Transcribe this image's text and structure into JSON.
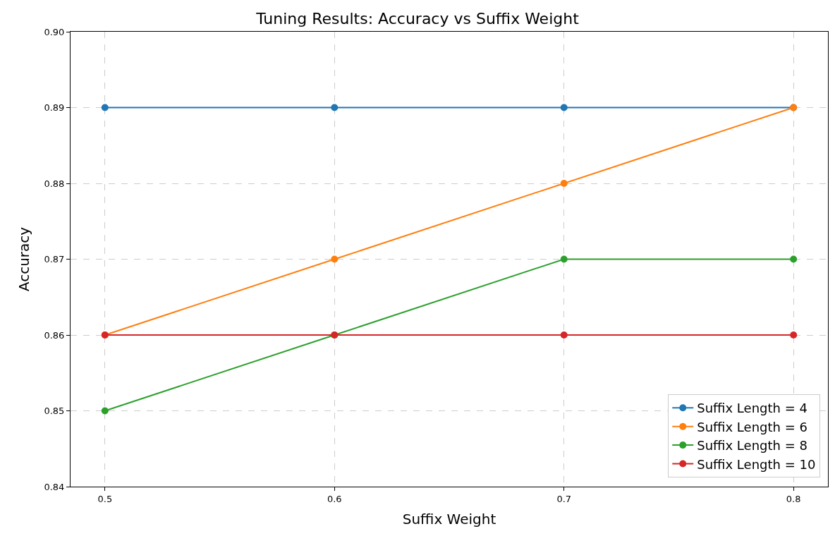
{
  "chart_data": {
    "type": "line",
    "title": "Tuning Results: Accuracy vs Suffix Weight",
    "xlabel": "Suffix Weight",
    "ylabel": "Accuracy",
    "x": [
      0.5,
      0.6,
      0.7,
      0.8
    ],
    "series": [
      {
        "name": "Suffix Length = 4",
        "color": "#1f77b4",
        "values": [
          0.89,
          0.89,
          0.89,
          0.89
        ]
      },
      {
        "name": "Suffix Length = 6",
        "color": "#ff7f0e",
        "values": [
          0.86,
          0.87,
          0.88,
          0.89
        ]
      },
      {
        "name": "Suffix Length = 8",
        "color": "#2ca02c",
        "values": [
          0.85,
          0.86,
          0.87,
          0.87
        ]
      },
      {
        "name": "Suffix Length = 10",
        "color": "#d62728",
        "values": [
          0.86,
          0.86,
          0.86,
          0.86
        ]
      }
    ],
    "xlim": [
      0.485,
      0.815
    ],
    "xticks": [
      0.5,
      0.6,
      0.7,
      0.8
    ],
    "ylim": [
      0.84,
      0.9
    ],
    "yticks": [
      0.84,
      0.85,
      0.86,
      0.87,
      0.88,
      0.89,
      {
        "value": 0.9,
        "label": "0.90"
      }
    ],
    "grid": true,
    "legend": "bottom right",
    "marker": "circle",
    "line_style": "solid"
  }
}
